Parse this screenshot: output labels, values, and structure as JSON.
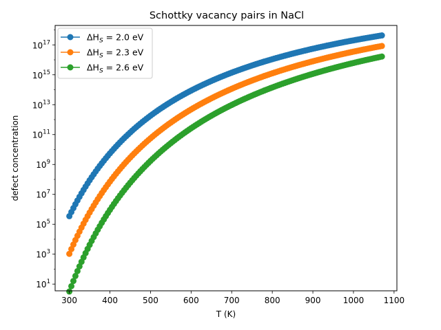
{
  "chart_data": {
    "type": "line",
    "title": "Schottky vacancy pairs in NaCl",
    "xlabel": "T (K)",
    "ylabel": "defect concentration",
    "xlim": [
      265,
      1107
    ],
    "ylim_log10": [
      0.55,
      18.3
    ],
    "yscale": "log",
    "xticks": [
      300,
      400,
      500,
      600,
      700,
      800,
      900,
      1000,
      1100
    ],
    "yticks": [
      {
        "exp": 1,
        "base": "10",
        "power": "1"
      },
      {
        "exp": 3,
        "base": "10",
        "power": "3"
      },
      {
        "exp": 5,
        "base": "10",
        "power": "5"
      },
      {
        "exp": 7,
        "base": "10",
        "power": "7"
      },
      {
        "exp": 9,
        "base": "10",
        "power": "9"
      },
      {
        "exp": 11,
        "base": "10",
        "power": "11"
      },
      {
        "exp": 13,
        "base": "10",
        "power": "13"
      },
      {
        "exp": 15,
        "base": "10",
        "power": "15"
      },
      {
        "exp": 17,
        "base": "10",
        "power": "17"
      }
    ],
    "grid": false,
    "legend_position": "top-left",
    "model": {
      "x_start": 300,
      "x_end": 1070,
      "x_step": 5,
      "prefactor": 2.2e+22,
      "k_eV": 8.617e-05
    },
    "series": [
      {
        "name_prefix": "ΔH",
        "name_sub": "S",
        "name_suffix": " = 2.0 eV",
        "dH": 2.0,
        "color": "#1f77b4"
      },
      {
        "name_prefix": "ΔH",
        "name_sub": "S",
        "name_suffix": " = 2.3 eV",
        "dH": 2.3,
        "color": "#ff7f0e"
      },
      {
        "name_prefix": "ΔH",
        "name_sub": "S",
        "name_suffix": " = 2.6 eV",
        "dH": 2.6,
        "color": "#2ca02c"
      }
    ]
  }
}
